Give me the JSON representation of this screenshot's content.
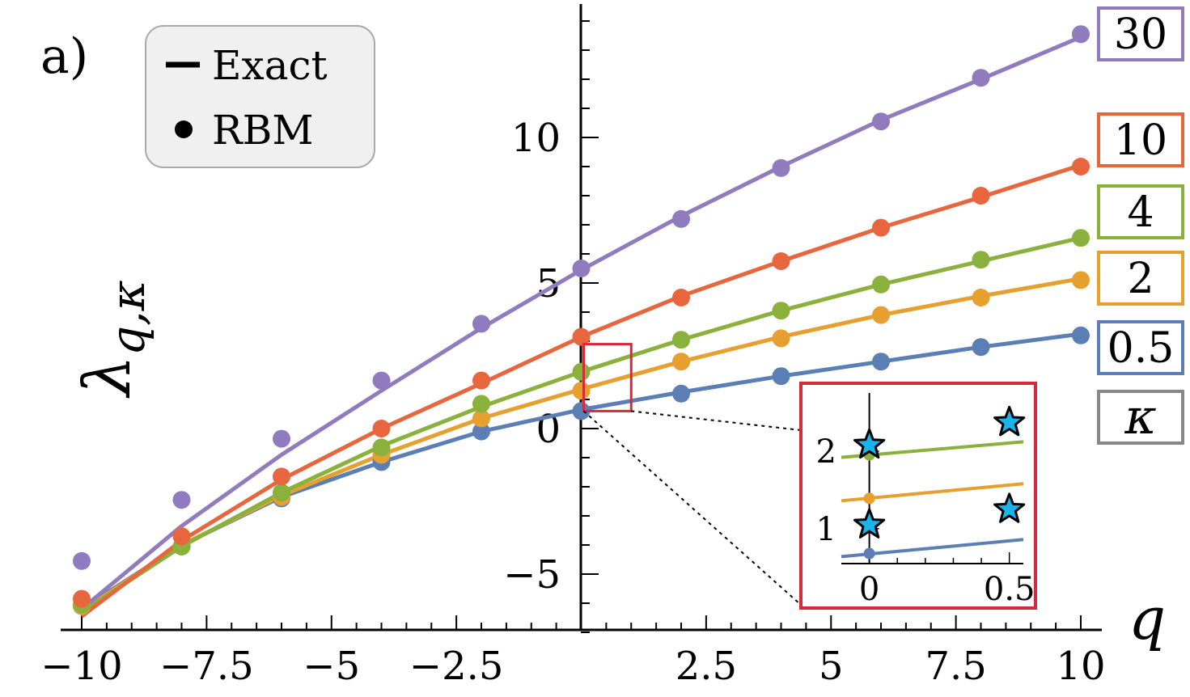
{
  "panel_label": "a)",
  "legend": {
    "line_label": "Exact",
    "marker_label": "RBM"
  },
  "kappa_key_label": "κ",
  "chart_data": {
    "type": "line",
    "title": "",
    "xlabel": "q",
    "ylabel": "λq,κ",
    "ylabel_symbol": "λ",
    "ylabel_subscript": "q,κ",
    "xlim": [
      -10,
      10
    ],
    "ylim": [
      -7,
      14.5
    ],
    "xticks": [
      -10,
      -7.5,
      -5,
      -2.5,
      2.5,
      5,
      7.5,
      10
    ],
    "xtick_labels": [
      "−10",
      "−7.5",
      "−5",
      "−2.5",
      "2.5",
      "5",
      "7.5",
      "10"
    ],
    "yticks": [
      -5,
      0,
      5,
      10
    ],
    "ytick_labels": [
      "−5",
      "0",
      "5",
      "10"
    ],
    "series": [
      {
        "name": "0.5",
        "color": "#5b7fb5",
        "exact": {
          "x": [
            -10,
            -8,
            -6,
            -4,
            -2,
            0,
            2,
            4,
            6,
            8,
            10
          ],
          "y": [
            -6.2,
            -4.0,
            -2.35,
            -1.15,
            -0.1,
            0.65,
            1.25,
            1.8,
            2.3,
            2.8,
            3.25
          ]
        },
        "rbm": {
          "x": [
            -10,
            -8,
            -6,
            -4,
            -2,
            0,
            2,
            4,
            6,
            8,
            10
          ],
          "y": [
            -6.1,
            -4.05,
            -2.4,
            -1.15,
            -0.1,
            0.6,
            1.2,
            1.8,
            2.3,
            2.8,
            3.2
          ]
        }
      },
      {
        "name": "2",
        "color": "#e5a030",
        "exact": {
          "x": [
            -10,
            -8,
            -6,
            -4,
            -2,
            0,
            2,
            4,
            6,
            8,
            10
          ],
          "y": [
            -6.25,
            -4.0,
            -2.3,
            -0.9,
            0.35,
            1.35,
            2.3,
            3.15,
            3.9,
            4.55,
            5.15
          ]
        },
        "rbm": {
          "x": [
            -10,
            -8,
            -6,
            -4,
            -2,
            0,
            2,
            4,
            6,
            8,
            10
          ],
          "y": [
            -6.1,
            -4.05,
            -2.35,
            -0.9,
            0.35,
            1.3,
            2.3,
            3.1,
            3.9,
            4.5,
            5.1
          ]
        }
      },
      {
        "name": "4",
        "color": "#8ab13c",
        "exact": {
          "x": [
            -10,
            -8,
            -6,
            -4,
            -2,
            0,
            2,
            4,
            6,
            8,
            10
          ],
          "y": [
            -6.3,
            -4.05,
            -2.2,
            -0.6,
            0.75,
            1.95,
            3.05,
            4.05,
            4.95,
            5.75,
            6.55
          ]
        },
        "rbm": {
          "x": [
            -10,
            -8,
            -6,
            -4,
            -2,
            0,
            2,
            4,
            6,
            8,
            10
          ],
          "y": [
            -6.05,
            -4.05,
            -2.2,
            -0.65,
            0.85,
            1.95,
            3.05,
            4.05,
            4.95,
            5.8,
            6.55
          ]
        }
      },
      {
        "name": "10",
        "color": "#e8663d",
        "exact": {
          "x": [
            -10,
            -8,
            -6,
            -4,
            -2,
            0,
            2,
            4,
            6,
            8,
            10
          ],
          "y": [
            -6.45,
            -3.85,
            -1.75,
            0.0,
            1.55,
            3.15,
            4.55,
            5.75,
            6.9,
            7.95,
            9.05
          ]
        },
        "rbm": {
          "x": [
            -10,
            -8,
            -6,
            -4,
            -2,
            0,
            2,
            4,
            6,
            8,
            10
          ],
          "y": [
            -5.85,
            -3.7,
            -1.65,
            0.0,
            1.65,
            3.15,
            4.5,
            5.75,
            6.9,
            8.0,
            9.0
          ]
        }
      },
      {
        "name": "30",
        "color": "#8f7bbd",
        "exact": {
          "x": [
            -10,
            -8,
            -6,
            -4,
            -2,
            0,
            2,
            4,
            6,
            8,
            10
          ],
          "y": [
            -6.2,
            -3.35,
            -0.9,
            1.3,
            3.45,
            5.45,
            7.3,
            9.0,
            10.6,
            12.0,
            13.45
          ]
        },
        "rbm": {
          "x": [
            -10,
            -8,
            -6,
            -4,
            -2,
            0,
            2,
            4,
            6,
            8,
            10
          ],
          "y": [
            -4.55,
            -2.45,
            -0.35,
            1.65,
            3.6,
            5.5,
            7.2,
            8.95,
            10.55,
            12.05,
            13.55
          ]
        }
      }
    ],
    "zoom_region": {
      "x": [
        0,
        1
      ],
      "y": [
        0.6,
        2.9
      ]
    },
    "inset": {
      "xlim": [
        -0.1,
        0.55
      ],
      "ylim": [
        0.55,
        2.75
      ],
      "xticks": [
        0,
        0.5
      ],
      "xtick_labels": [
        "0",
        "0.5"
      ],
      "yticks": [
        1,
        2
      ],
      "ytick_labels": [
        "1",
        "2"
      ],
      "lines": [
        {
          "name": "4",
          "color": "#8ab13c",
          "x": [
            -0.1,
            0.55
          ],
          "y": [
            1.92,
            2.12
          ]
        },
        {
          "name": "2",
          "color": "#e5a030",
          "x": [
            -0.1,
            0.55
          ],
          "y": [
            1.36,
            1.58
          ]
        },
        {
          "name": "0.5",
          "color": "#5b7fb5",
          "x": [
            -0.1,
            0.55
          ],
          "y": [
            0.64,
            0.86
          ]
        }
      ],
      "points": [
        {
          "color": "#8ab13c",
          "x": 0,
          "y": 1.95
        },
        {
          "color": "#e5a030",
          "x": 0,
          "y": 1.39
        },
        {
          "color": "#5b7fb5",
          "x": 0,
          "y": 0.68
        }
      ],
      "stars": [
        {
          "x": 0,
          "y": 2.08
        },
        {
          "x": 0.5,
          "y": 2.37
        },
        {
          "x": 0,
          "y": 1.05
        },
        {
          "x": 0.5,
          "y": 1.25
        }
      ],
      "star_color": "#1ab4ea"
    }
  }
}
